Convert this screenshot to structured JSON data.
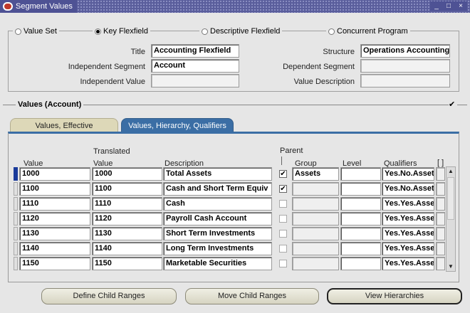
{
  "window": {
    "title": "Segment Values"
  },
  "header": {
    "radios": [
      {
        "label": "Value Set",
        "selected": false
      },
      {
        "label": "Key Flexfield",
        "selected": true
      },
      {
        "label": "Descriptive Flexfield",
        "selected": false
      },
      {
        "label": "Concurrent Program",
        "selected": false
      }
    ],
    "title_label": "Title",
    "title_value": "Accounting Flexfield",
    "structure_label": "Structure",
    "structure_value": "Operations Accounting",
    "indep_segment_label": "Independent Segment",
    "indep_segment_value": "Account",
    "dep_segment_label": "Dependent Segment",
    "dep_segment_value": "",
    "indep_value_label": "Independent Value",
    "indep_value_value": "",
    "value_desc_label": "Value Description",
    "value_desc_value": ""
  },
  "section": {
    "title": "Values (Account)",
    "checked_glyph": "✔"
  },
  "tabs": [
    {
      "label": "Values, Effective",
      "active": false
    },
    {
      "label": "Values, Hierarchy, Qualifiers",
      "active": true
    }
  ],
  "table": {
    "headers": {
      "value": "Value",
      "translated_top": "Translated",
      "translated_bottom": "Value",
      "description": "Description",
      "parent": "Parent",
      "group": "Group",
      "level": "Level",
      "qualifiers": "Qualifiers",
      "extra": "[ ]"
    },
    "rows": [
      {
        "value": "1000",
        "translated": "1000",
        "description": "Total Assets",
        "parent": true,
        "group": "Assets",
        "level": "",
        "qualifiers": "Yes.No.Asset"
      },
      {
        "value": "1100",
        "translated": "1100",
        "description": "Cash and Short Term Equiv",
        "parent": true,
        "group": "",
        "level": "",
        "qualifiers": "Yes.No.Asset"
      },
      {
        "value": "1110",
        "translated": "1110",
        "description": "Cash",
        "parent": false,
        "group": "",
        "level": "",
        "qualifiers": "Yes.Yes.Asse"
      },
      {
        "value": "1120",
        "translated": "1120",
        "description": "Payroll Cash Account",
        "parent": false,
        "group": "",
        "level": "",
        "qualifiers": "Yes.Yes.Asse"
      },
      {
        "value": "1130",
        "translated": "1130",
        "description": "Short Term Investments",
        "parent": false,
        "group": "",
        "level": "",
        "qualifiers": "Yes.Yes.Asse"
      },
      {
        "value": "1140",
        "translated": "1140",
        "description": "Long Term Investments",
        "parent": false,
        "group": "",
        "level": "",
        "qualifiers": "Yes.Yes.Asse"
      },
      {
        "value": "1150",
        "translated": "1150",
        "description": "Marketable Securities",
        "parent": false,
        "group": "",
        "level": "",
        "qualifiers": "Yes.Yes.Asse"
      }
    ]
  },
  "buttons": {
    "define_child_ranges": "Define Child Ranges",
    "move_child_ranges": "Move Child Ranges",
    "view_hierarchies": "View Hierarchies"
  },
  "icons": {
    "close": "×",
    "minimize": "_",
    "maximize": "□",
    "check": "✔",
    "scroll_up": "▲",
    "scroll_down": "▼"
  }
}
